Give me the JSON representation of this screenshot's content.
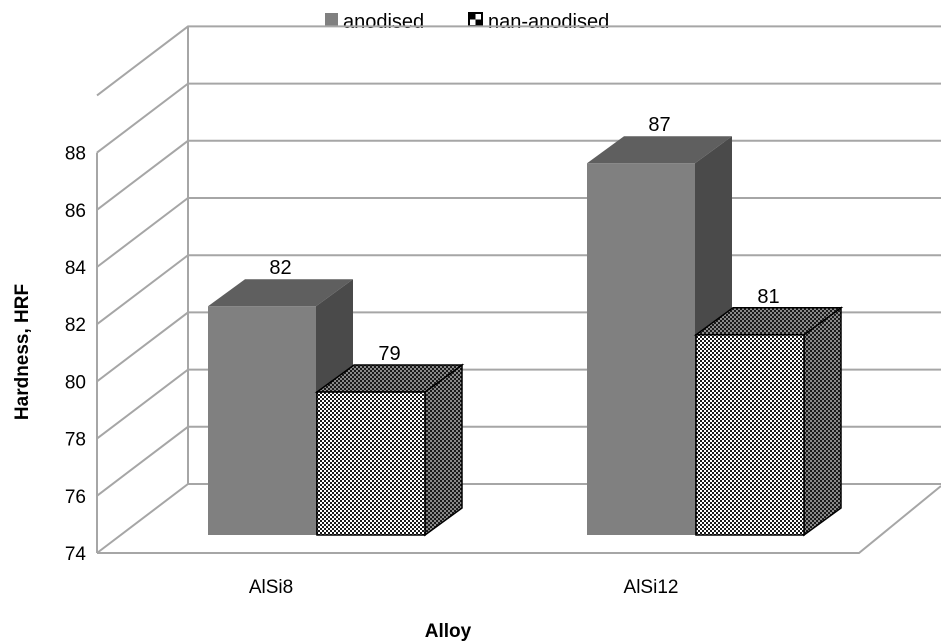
{
  "chart_data": {
    "type": "bar",
    "style": "3d-clustered-column",
    "categories": [
      "AlSi8",
      "AlSi12"
    ],
    "series": [
      {
        "name": "anodised",
        "values": [
          82,
          87
        ],
        "labels": [
          "82",
          "87"
        ],
        "color": "#808080",
        "pattern": "solid"
      },
      {
        "name": "nan-anodised",
        "values": [
          79,
          81
        ],
        "labels": [
          "79",
          "81"
        ],
        "color": "#ffffff",
        "pattern": "checkerboard"
      }
    ],
    "xlabel": "Alloy",
    "ylabel": "Hardness, HRF",
    "ylim": [
      74,
      88
    ],
    "ticks": [
      "74",
      "76",
      "78",
      "80",
      "82",
      "84",
      "86",
      "88"
    ],
    "grid": true,
    "legend_position": "top"
  }
}
